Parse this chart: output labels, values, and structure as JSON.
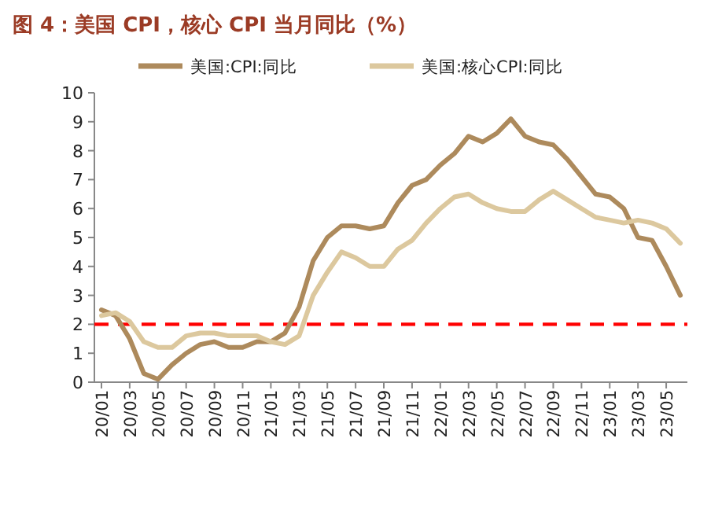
{
  "chart_data": {
    "type": "line",
    "title": "图 4：美国 CPI，核心 CPI 当月同比（%）",
    "categories": [
      "20/01",
      null,
      "20/03",
      null,
      "20/05",
      null,
      "20/07",
      null,
      "20/09",
      null,
      "20/11",
      null,
      "21/01",
      null,
      "21/03",
      null,
      "21/05",
      null,
      "21/07",
      null,
      "21/09",
      null,
      "21/11",
      null,
      "22/01",
      null,
      "22/03",
      null,
      "22/05",
      null,
      "22/07",
      null,
      "22/09",
      null,
      "22/11",
      null,
      "23/01",
      null,
      "23/03",
      null,
      "23/05",
      null
    ],
    "series": [
      {
        "name": "美国:CPI:同比",
        "color": "#ad8a5c",
        "values": [
          2.5,
          2.3,
          1.5,
          0.3,
          0.1,
          0.6,
          1.0,
          1.3,
          1.4,
          1.2,
          1.2,
          1.4,
          1.4,
          1.7,
          2.6,
          4.2,
          5.0,
          5.4,
          5.4,
          5.3,
          5.4,
          6.2,
          6.8,
          7.0,
          7.5,
          7.9,
          8.5,
          8.3,
          8.6,
          9.1,
          8.5,
          8.3,
          8.2,
          7.7,
          7.1,
          6.5,
          6.4,
          6.0,
          5.0,
          4.9,
          4.0,
          3.0
        ]
      },
      {
        "name": "美国:核心CPI:同比",
        "color": "#dcc89e",
        "values": [
          2.3,
          2.4,
          2.1,
          1.4,
          1.2,
          1.2,
          1.6,
          1.7,
          1.7,
          1.6,
          1.6,
          1.6,
          1.4,
          1.3,
          1.6,
          3.0,
          3.8,
          4.5,
          4.3,
          4.0,
          4.0,
          4.6,
          4.9,
          5.5,
          6.0,
          6.4,
          6.5,
          6.2,
          6.0,
          5.9,
          5.9,
          6.3,
          6.6,
          6.3,
          6.0,
          5.7,
          5.6,
          5.5,
          5.6,
          5.5,
          5.3,
          4.8
        ]
      }
    ],
    "ylim": [
      0,
      10
    ],
    "yticks": [
      0,
      1,
      2,
      3,
      4,
      5,
      6,
      7,
      8,
      9,
      10
    ],
    "ref_lines": [
      {
        "axis": "y",
        "value": 2,
        "color": "#ff0000",
        "line_style": "dashed"
      }
    ],
    "legend": "top",
    "grid": false
  }
}
